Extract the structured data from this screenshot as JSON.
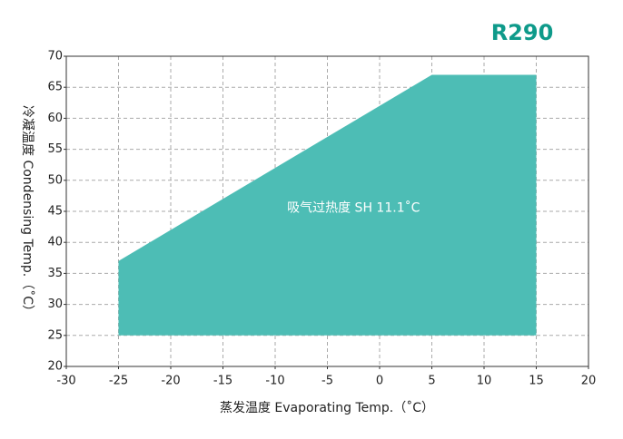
{
  "chart_data": {
    "type": "polygon",
    "title": "R290",
    "annotation": "吸气过热度 SH 11.1˚C",
    "xlabel": "蒸发温度 Evaporating Temp.（˚C）",
    "ylabel": "冷凝温度 Condensing Temp.（˚C）",
    "x": [
      -25,
      -25,
      5,
      15,
      15
    ],
    "y": [
      25,
      37,
      67,
      67,
      25
    ],
    "color": "#4dbdb5",
    "xlim": [
      -30,
      20
    ],
    "xticks": [
      -30,
      -25,
      -20,
      -15,
      -10,
      -5,
      0,
      5,
      10,
      15,
      20
    ],
    "ylim": [
      20,
      70
    ],
    "yticks": [
      20,
      25,
      30,
      35,
      40,
      45,
      50,
      55,
      60,
      65,
      70
    ],
    "grid": true
  }
}
